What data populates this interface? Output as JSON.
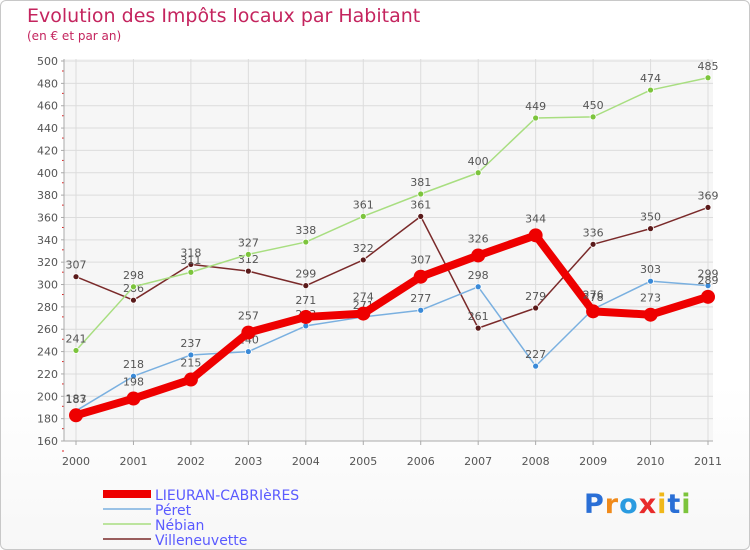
{
  "title": "Evolution des Impôts locaux par Habitant",
  "subtitle": "(en € et par an)",
  "logo": [
    "P",
    "r",
    "o",
    "x",
    "i",
    "t",
    "i"
  ],
  "colors": {
    "background": "#ffffff",
    "plot_bg": "#f6f6f6",
    "grid": "#dcdcdc",
    "axis": "#aaaaaa",
    "title": "#c4245e",
    "label": "#555555",
    "legend_text": "#5a5aff"
  },
  "chart_data": {
    "type": "line",
    "title": "Evolution des Impôts locaux par Habitant",
    "xlabel": "",
    "ylabel": "(en € et par an)",
    "x": [
      "2000",
      "2001",
      "2002",
      "2003",
      "2004",
      "2005",
      "2006",
      "2007",
      "2008",
      "2009",
      "2010",
      "2011"
    ],
    "ylim": [
      160,
      500
    ],
    "yticks": [
      160,
      180,
      200,
      220,
      240,
      260,
      280,
      300,
      320,
      340,
      360,
      380,
      400,
      420,
      440,
      460,
      480,
      500
    ],
    "grid": true,
    "legend_position": "bottom-left",
    "series": [
      {
        "name": "Villeneuvette",
        "color": "#7a2a2a",
        "marker": "#5a1a1a",
        "values": [
          307,
          286,
          318,
          312,
          299,
          322,
          361,
          261,
          279,
          336,
          350,
          369
        ],
        "labels": [
          "307",
          "286",
          "318",
          "312",
          "299",
          "322",
          "361",
          "261",
          "279",
          "336",
          "350",
          "369"
        ]
      },
      {
        "name": "Nébian",
        "color": "#a8de80",
        "marker": "#7cc43c",
        "values": [
          241,
          298,
          311,
          327,
          338,
          361,
          381,
          400,
          449,
          450,
          474,
          485
        ],
        "labels": [
          "241",
          "298",
          "311",
          "327",
          "338",
          "361",
          "381",
          "400",
          "449",
          "450",
          "474",
          "485"
        ]
      },
      {
        "name": "Péret",
        "color": "#7ab0e0",
        "marker": "#3a8ad8",
        "values": [
          187,
          218,
          237,
          240,
          263,
          271,
          277,
          298,
          227,
          278,
          303,
          299
        ],
        "labels": [
          "187",
          "218",
          "237",
          "240",
          "263",
          "271",
          "277",
          "298",
          "227",
          "278",
          "303",
          "299"
        ]
      },
      {
        "name": "LIEURAN-CABRIèRES",
        "color": "#ee0000",
        "marker": "#ee0000",
        "values": [
          183,
          198,
          215,
          257,
          271,
          274,
          307,
          326,
          344,
          276,
          273,
          289
        ],
        "labels": [
          "183",
          "198",
          "215",
          "257",
          "271",
          "274",
          "307",
          "326",
          "344",
          "276",
          "273",
          "289"
        ]
      }
    ],
    "legend": [
      "LIEURAN-CABRIèRES",
      "Péret",
      "Nébian",
      "Villeneuvette"
    ]
  }
}
